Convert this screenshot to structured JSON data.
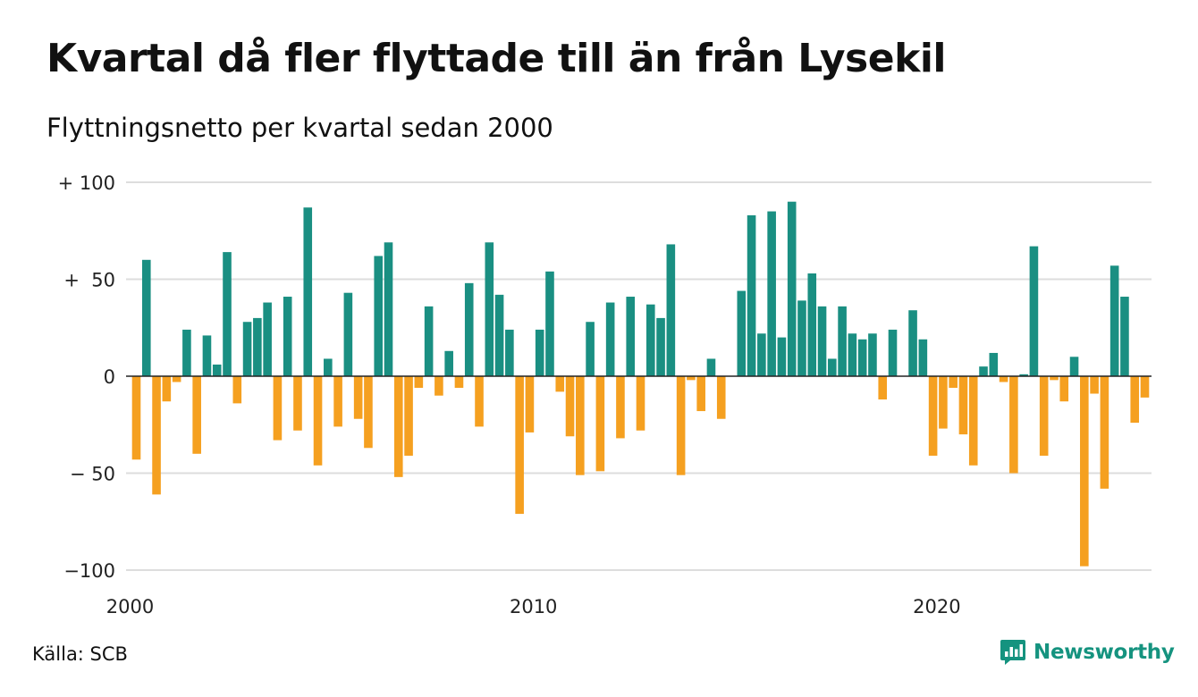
{
  "title": "Kvartal då fler flyttade till än från Lysekil",
  "subtitle": "Flyttningsnetto per kvartal sedan 2000",
  "source": "Källa: SCB",
  "brand": "Newsworthy",
  "colors": {
    "positive": "#1a8f82",
    "negative": "#f5a020",
    "grid": "#dddddd",
    "zero_line": "#222222",
    "brand": "#15937f"
  },
  "chart_data": {
    "type": "bar",
    "xlabel": "",
    "ylabel": "",
    "ylim": [
      -100,
      100
    ],
    "y_ticks": [
      {
        "value": 100,
        "label": "+ 100"
      },
      {
        "value": 50,
        "label": "+  50"
      },
      {
        "value": 0,
        "label": "0"
      },
      {
        "value": -50,
        "label": "− 50"
      },
      {
        "value": -100,
        "label": "−100"
      }
    ],
    "x_ticks": [
      {
        "index": 0,
        "label": "2000"
      },
      {
        "index": 40,
        "label": "2010"
      },
      {
        "index": 80,
        "label": "2020"
      }
    ],
    "start": "2000 Q1",
    "values": [
      -43,
      60,
      -61,
      -13,
      -3,
      24,
      -40,
      21,
      6,
      64,
      -14,
      28,
      30,
      38,
      -33,
      41,
      -28,
      87,
      -46,
      9,
      -26,
      43,
      -22,
      -37,
      62,
      69,
      -52,
      -41,
      -6,
      36,
      -10,
      13,
      -6,
      48,
      -26,
      69,
      42,
      24,
      -71,
      -29,
      24,
      54,
      -8,
      -31,
      -51,
      28,
      -49,
      38,
      -32,
      41,
      -28,
      37,
      30,
      68,
      -51,
      -2,
      -18,
      9,
      -22,
      0,
      44,
      83,
      22,
      85,
      20,
      90,
      39,
      53,
      36,
      9,
      36,
      22,
      19,
      22,
      -12,
      24,
      0,
      34,
      19,
      -41,
      -27,
      -6,
      -30,
      -46,
      5,
      12,
      -3,
      -50,
      1,
      67,
      -41,
      -2,
      -13,
      10,
      -98,
      -9,
      -58,
      57,
      41,
      -24,
      -11
    ]
  }
}
